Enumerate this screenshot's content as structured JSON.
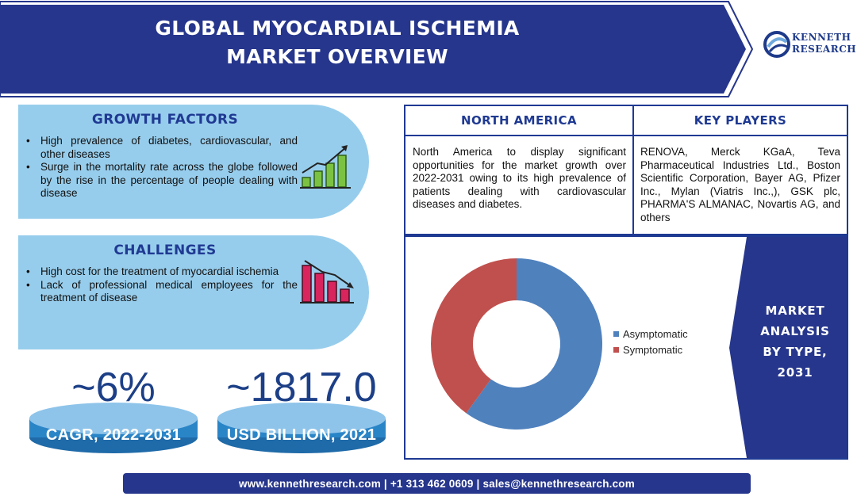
{
  "header": {
    "title_line1": "GLOBAL MYOCARDIAL ISCHEMIA",
    "title_line2": "MARKET OVERVIEW",
    "banner_color": "#26368c",
    "logo": {
      "line1": "KENNETH",
      "line2": "RESEARCH",
      "icon": "kenneth-research-logo-icon"
    }
  },
  "growth_factors": {
    "heading": "GROWTH FACTORS",
    "items": [
      "High prevalence of diabetes, cardiovascular, and other diseases",
      "Surge in the mortality rate across the globe followed by the rise in the percentage of people dealing with disease"
    ],
    "icon": "rising-bar-chart-icon",
    "color": "#97cdec"
  },
  "challenges": {
    "heading": "CHALLENGES",
    "items": [
      "High cost for the treatment of myocardial ischemia",
      "Lack of professional medical employees for the treatment of disease"
    ],
    "icon": "falling-bar-chart-icon"
  },
  "stats": {
    "cagr": {
      "value": "~6%",
      "label": "CAGR, 2022-2031"
    },
    "market_size": {
      "value": "~1817.0",
      "label": "USD BILLION, 2021"
    }
  },
  "north_america": {
    "heading": "NORTH AMERICA",
    "text": "North America to display significant opportunities for the market growth over 2022-2031 owing to its high prevalence of patients dealing with cardiovascular diseases and diabetes."
  },
  "key_players": {
    "heading": "KEY PLAYERS",
    "text": "RENOVA, Merck KGaA, Teva Pharmaceutical Industries Ltd., Boston Scientific Corporation, Bayer AG, Pfizer Inc., Mylan (Viatris Inc.,), GSK plc, PHARMA'S ALMANAC, Novartis AG, and others"
  },
  "chart_caption": {
    "line1": "MARKET",
    "line2": "ANALYSIS",
    "line3": "BY TYPE,",
    "line4": "2031"
  },
  "chart_data": {
    "type": "pie",
    "donut": true,
    "categories": [
      "Asymptomatic",
      "Symptomatic"
    ],
    "values": [
      60,
      40
    ],
    "colors": [
      "#4f81bd",
      "#c0504d"
    ],
    "legend_position": "right"
  },
  "footer": {
    "text": "www.kennethresearch.com | +1 313 462 0609 | sales@kennethresearch.com"
  }
}
